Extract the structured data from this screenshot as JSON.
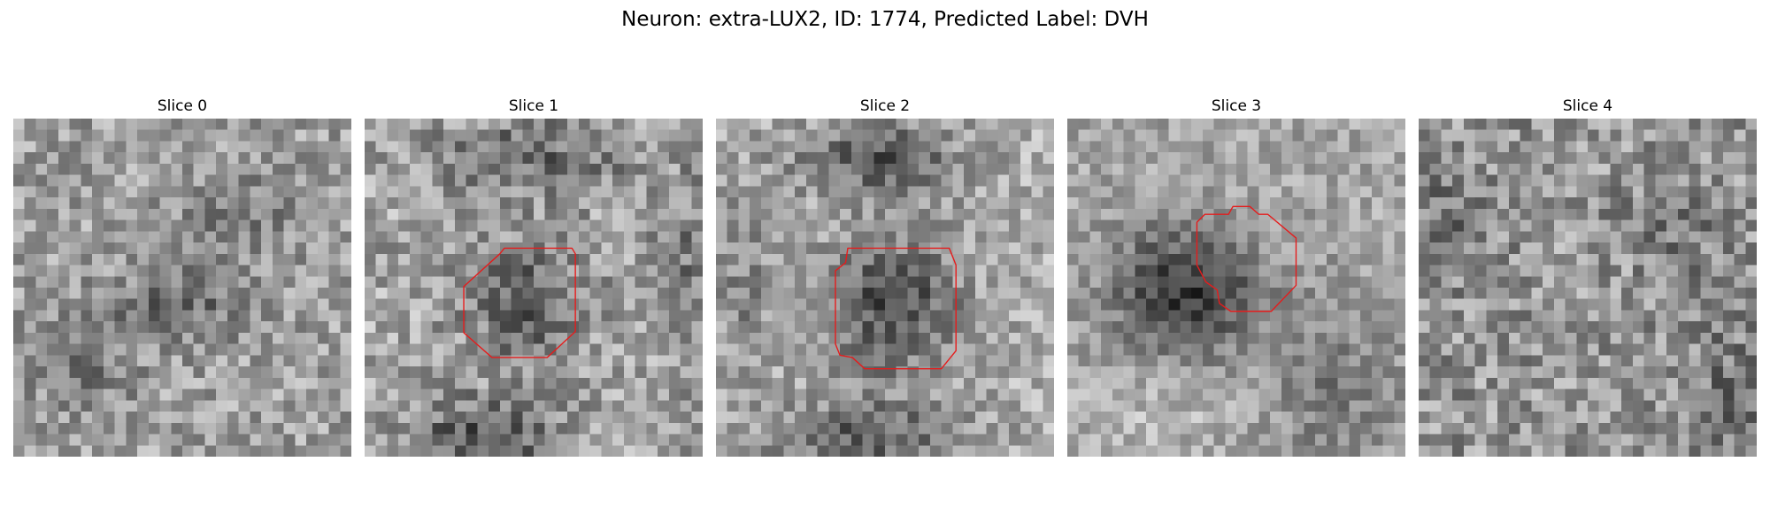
{
  "figure": {
    "title": "Neuron: extra-LUX2, ID: 1774, Predicted Label: DVH"
  },
  "slices": [
    {
      "label": "Slice 0",
      "has_contour": false
    },
    {
      "label": "Slice 1",
      "has_contour": true
    },
    {
      "label": "Slice 2",
      "has_contour": true
    },
    {
      "label": "Slice 3",
      "has_contour": true
    },
    {
      "label": "Slice 4",
      "has_contour": false
    }
  ],
  "colors": {
    "contour": "#e51c1c",
    "background": "#ffffff",
    "colormap": "gray"
  }
}
